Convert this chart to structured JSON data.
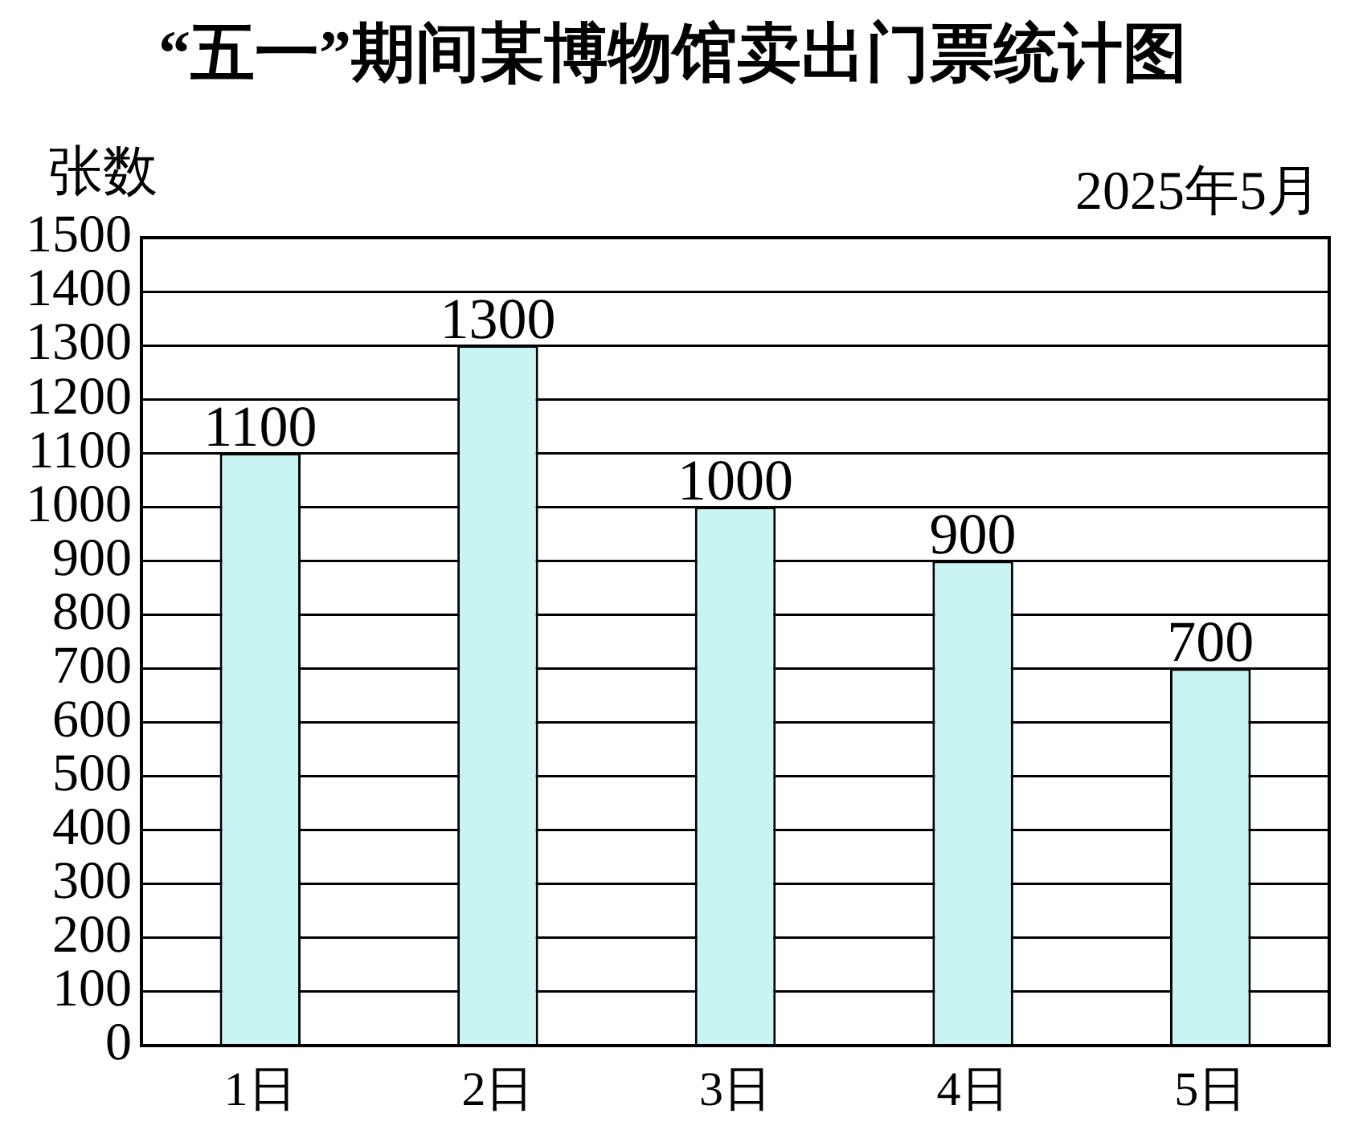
{
  "chart_data": {
    "type": "bar",
    "title": "“五一”期间某博物馆卖出门票统计图",
    "subtitle": "2025年5月",
    "ylabel": "张数",
    "categories": [
      "1日",
      "2日",
      "3日",
      "4日",
      "5日"
    ],
    "values": [
      1100,
      1300,
      1000,
      900,
      700
    ],
    "color": "#c8f4f4",
    "ylim": [
      0,
      1500
    ],
    "yticks": [
      0,
      100,
      200,
      300,
      400,
      500,
      600,
      700,
      800,
      900,
      1000,
      1100,
      1200,
      1300,
      1400,
      1500
    ],
    "grid": "y",
    "data_labels": true,
    "legend": false
  }
}
